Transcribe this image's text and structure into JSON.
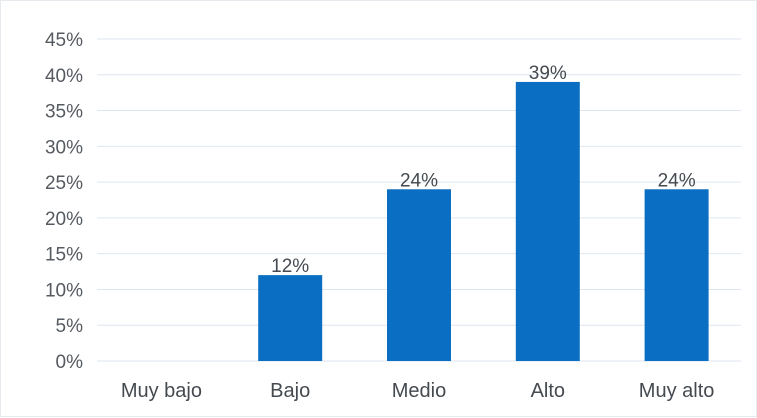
{
  "chart_data": {
    "type": "bar",
    "categories": [
      "Muy bajo",
      "Bajo",
      "Medio",
      "Alto",
      "Muy alto"
    ],
    "values": [
      0,
      12,
      24,
      39,
      24
    ],
    "data_labels": [
      "",
      "12%",
      "24%",
      "39%",
      "24%"
    ],
    "y_ticks": [
      0,
      5,
      10,
      15,
      20,
      25,
      30,
      35,
      40,
      45
    ],
    "y_tick_labels": [
      "0%",
      "5%",
      "10%",
      "15%",
      "20%",
      "25%",
      "30%",
      "35%",
      "40%",
      "45%"
    ],
    "ylim": [
      0,
      45
    ],
    "grid": true,
    "legend": "none",
    "title": "",
    "xlabel": "",
    "ylabel": "",
    "colors": {
      "bar": "#0a6fc2",
      "grid": "#dde6ef"
    }
  }
}
